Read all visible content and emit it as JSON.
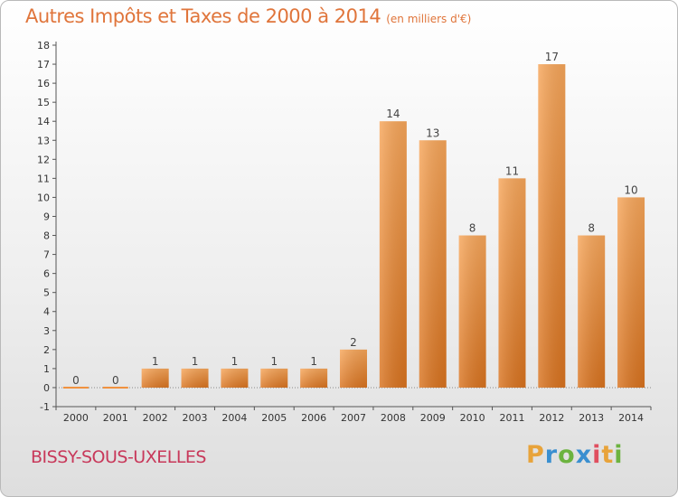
{
  "chart_data": {
    "type": "bar",
    "title": "Autres Impôts et Taxes de 2000 à 2014",
    "subtitle": "(en milliers d'€)",
    "xlabel": "",
    "ylabel": "",
    "categories": [
      "2000",
      "2001",
      "2002",
      "2003",
      "2004",
      "2005",
      "2006",
      "2007",
      "2008",
      "2009",
      "2010",
      "2011",
      "2012",
      "2013",
      "2014"
    ],
    "values": [
      0,
      0,
      1,
      1,
      1,
      1,
      1,
      2,
      14,
      13,
      8,
      11,
      17,
      8,
      10
    ],
    "ylim": [
      -1,
      18
    ],
    "yticks": [
      "-1",
      "0",
      "1",
      "2",
      "3",
      "4",
      "5",
      "6",
      "7",
      "8",
      "9",
      "10",
      "11",
      "12",
      "13",
      "14",
      "15",
      "16",
      "17",
      "18"
    ],
    "grid": false,
    "bar_color": "#f0903c"
  },
  "location": "BISSY-SOUS-UXELLES",
  "logo": "Proxiti"
}
